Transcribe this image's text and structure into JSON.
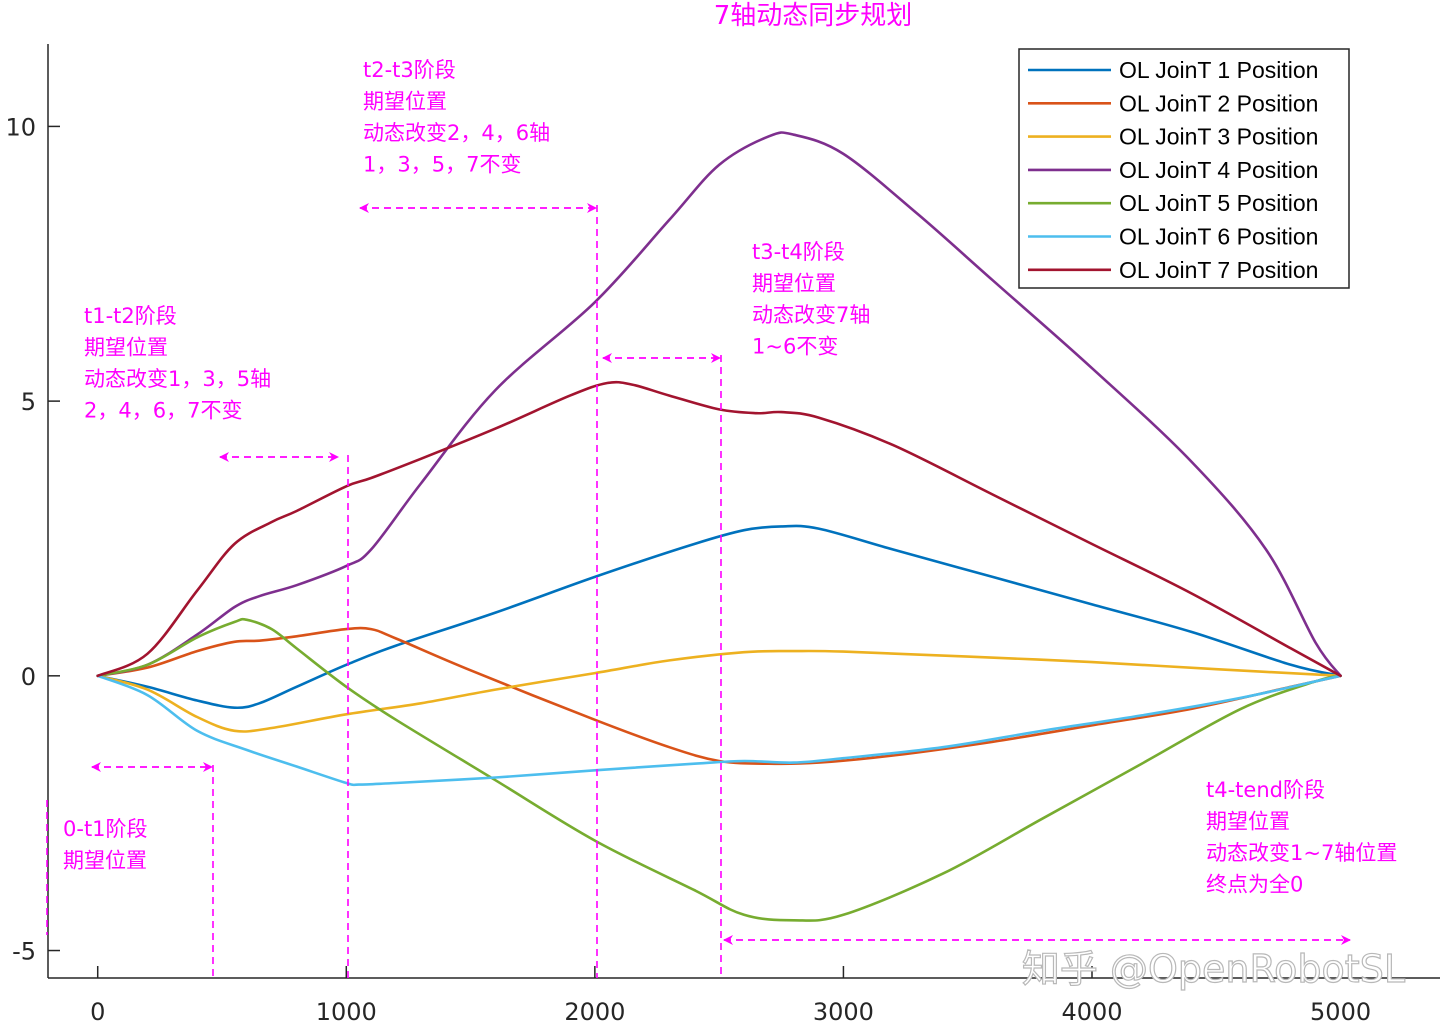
{
  "chart_data": {
    "type": "line",
    "title": "7轴动态同步规划",
    "xlabel": "",
    "ylabel": "",
    "xlim": [
      -200,
      5400
    ],
    "ylim": [
      -5.5,
      11.5
    ],
    "xticks": [
      0,
      1000,
      2000,
      3000,
      4000,
      5000
    ],
    "yticks": [
      -5,
      0,
      5,
      10
    ],
    "legend_position": "top-right",
    "grid": false,
    "series": [
      {
        "name": "OL JoinT 1 Position",
        "color": "#0072BD",
        "x": [
          0,
          200,
          400,
          550,
          650,
          800,
          1000,
          1200,
          1600,
          2000,
          2400,
          2600,
          2750,
          2900,
          3200,
          3600,
          4000,
          4400,
          4800,
          5000
        ],
        "y": [
          0,
          -0.2,
          -0.45,
          -0.58,
          -0.5,
          -0.2,
          0.2,
          0.55,
          1.15,
          1.8,
          2.4,
          2.65,
          2.72,
          2.68,
          2.3,
          1.8,
          1.3,
          0.8,
          0.2,
          0
        ]
      },
      {
        "name": "OL JoinT 2 Position",
        "color": "#D95319",
        "x": [
          0,
          200,
          400,
          550,
          650,
          800,
          1000,
          1100,
          1200,
          1500,
          2000,
          2300,
          2500,
          2700,
          2900,
          3200,
          3600,
          4000,
          4400,
          4800,
          5000
        ],
        "y": [
          0,
          0.15,
          0.45,
          0.62,
          0.64,
          0.72,
          0.85,
          0.85,
          0.68,
          0.1,
          -0.8,
          -1.3,
          -1.55,
          -1.6,
          -1.58,
          -1.45,
          -1.2,
          -0.9,
          -0.6,
          -0.2,
          0
        ]
      },
      {
        "name": "OL JoinT 3 Position",
        "color": "#EDB120",
        "x": [
          0,
          200,
          400,
          550,
          700,
          1000,
          1300,
          1600,
          2000,
          2300,
          2600,
          2800,
          3000,
          3500,
          4000,
          4500,
          5000
        ],
        "y": [
          0,
          -0.25,
          -0.75,
          -1.0,
          -0.95,
          -0.7,
          -0.5,
          -0.25,
          0.05,
          0.28,
          0.43,
          0.45,
          0.44,
          0.35,
          0.25,
          0.12,
          0
        ]
      },
      {
        "name": "OL JoinT 4 Position",
        "color": "#7E2F8E",
        "x": [
          0,
          200,
          400,
          550,
          650,
          800,
          1000,
          1100,
          1300,
          1600,
          2000,
          2300,
          2500,
          2700,
          2800,
          3000,
          3300,
          3600,
          4000,
          4400,
          4700,
          4900,
          5000
        ],
        "y": [
          0,
          0.2,
          0.75,
          1.25,
          1.45,
          1.65,
          2.0,
          2.3,
          3.5,
          5.2,
          6.8,
          8.3,
          9.3,
          9.82,
          9.85,
          9.5,
          8.4,
          7.2,
          5.6,
          3.9,
          2.3,
          0.6,
          0
        ]
      },
      {
        "name": "OL JoinT 5 Position",
        "color": "#77AC30",
        "x": [
          0,
          200,
          400,
          550,
          600,
          700,
          800,
          1000,
          1200,
          1600,
          2000,
          2400,
          2600,
          2800,
          3000,
          3400,
          3800,
          4200,
          4600,
          4900,
          5000
        ],
        "y": [
          0,
          0.2,
          0.7,
          0.98,
          1.02,
          0.85,
          0.5,
          -0.2,
          -0.8,
          -1.9,
          -3.0,
          -3.9,
          -4.35,
          -4.45,
          -4.35,
          -3.6,
          -2.6,
          -1.6,
          -0.6,
          -0.1,
          0
        ]
      },
      {
        "name": "OL JoinT 6 Position",
        "color": "#4DBEEE",
        "x": [
          0,
          200,
          400,
          600,
          800,
          1000,
          1050,
          1200,
          1600,
          2000,
          2400,
          2600,
          2800,
          3000,
          3400,
          3800,
          4200,
          4600,
          4900,
          5000
        ],
        "y": [
          0,
          -0.35,
          -1.0,
          -1.35,
          -1.65,
          -1.95,
          -1.98,
          -1.95,
          -1.85,
          -1.72,
          -1.6,
          -1.55,
          -1.58,
          -1.5,
          -1.3,
          -1.0,
          -0.72,
          -0.4,
          -0.1,
          0
        ]
      },
      {
        "name": "OL JoinT 7 Position",
        "color": "#A2142F",
        "x": [
          0,
          200,
          400,
          550,
          700,
          800,
          1000,
          1100,
          1300,
          1600,
          1900,
          2050,
          2150,
          2300,
          2500,
          2650,
          2750,
          2900,
          3200,
          3600,
          4000,
          4400,
          4800,
          5000
        ],
        "y": [
          0,
          0.4,
          1.55,
          2.4,
          2.8,
          3.0,
          3.45,
          3.6,
          3.95,
          4.5,
          5.1,
          5.33,
          5.3,
          5.1,
          4.85,
          4.78,
          4.8,
          4.7,
          4.2,
          3.3,
          2.4,
          1.5,
          0.5,
          0
        ]
      }
    ],
    "annotations": [
      {
        "id": "a0",
        "lines": [
          "0-t1阶段",
          "期望位置"
        ]
      },
      {
        "id": "a1",
        "lines": [
          "t1-t2阶段",
          "期望位置",
          "动态改变1，3，5轴",
          "2，4，6，7不变"
        ]
      },
      {
        "id": "a2",
        "lines": [
          "t2-t3阶段",
          "期望位置",
          "动态改变2，4，6轴",
          "1，3，5，7不变"
        ]
      },
      {
        "id": "a3",
        "lines": [
          "t3-t4阶段",
          "期望位置",
          "动态改变7轴",
          "1~6不变"
        ]
      },
      {
        "id": "a4",
        "lines": [
          "t4-tend阶段",
          "期望位置",
          "动态改变1~7轴位置",
          "终点为全0"
        ]
      }
    ]
  },
  "watermark": "知乎 @OpenRobotSL"
}
